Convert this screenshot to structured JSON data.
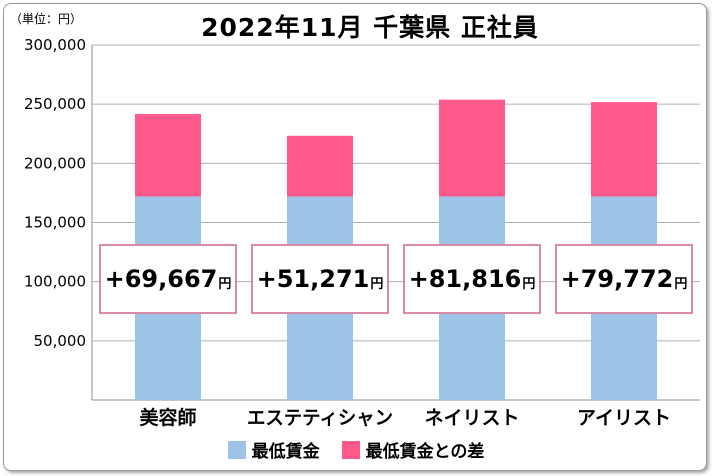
{
  "unit_label": "（単位：円）",
  "colors": {
    "minimum_wage": "#9dc3e6",
    "difference": "#ff5a8c",
    "box_border": "#d98aa8"
  },
  "chart_data": {
    "type": "bar",
    "stacked": true,
    "title": "2022年11月 千葉県 正社員",
    "categories": [
      "美容師",
      "エステティシャン",
      "ネイリスト",
      "アイリスト"
    ],
    "series": [
      {
        "name": "最低賃金",
        "values": [
          172000,
          172000,
          172000,
          172000
        ]
      },
      {
        "name": "最低賃金との差",
        "values": [
          69667,
          51271,
          81816,
          79772
        ]
      }
    ],
    "difference_labels": [
      "+69,667",
      "+51,271",
      "+81,816",
      "+79,772"
    ],
    "difference_unit": "円",
    "ylim": [
      0,
      300000
    ],
    "yticks": [
      "50,000",
      "100,000",
      "150,000",
      "200,000",
      "250,000",
      "300,000"
    ],
    "ytick_values": [
      50000,
      100000,
      150000,
      200000,
      250000,
      300000
    ],
    "grid": true,
    "legend": "bottom"
  }
}
